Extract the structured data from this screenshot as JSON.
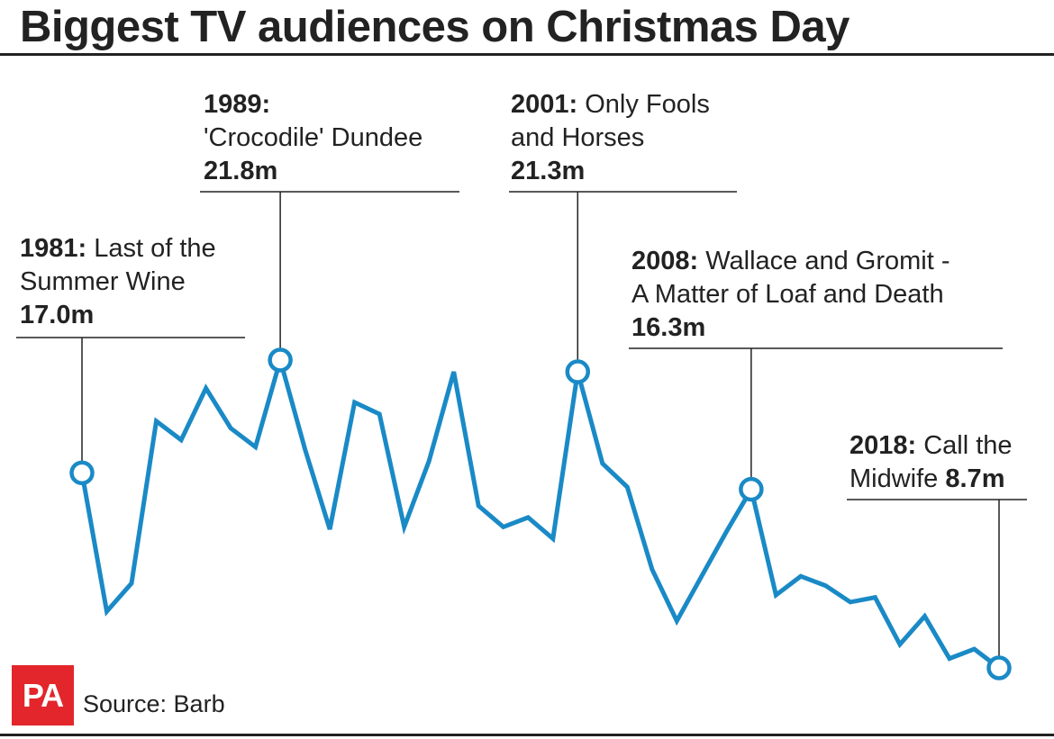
{
  "title": "Biggest TV audiences on Christmas Day",
  "source": "Source: Barb",
  "logo_text": "PA",
  "colors": {
    "line": "#1a8ac6",
    "text": "#222222",
    "logo": "#e3262b",
    "background": "#ffffff"
  },
  "annotations": [
    {
      "year": "1981:",
      "text": "Last of the",
      "text2": "Summer Wine",
      "value": "17.0m"
    },
    {
      "year": "1989:",
      "text": "'Crocodile' Dundee",
      "value": "21.8m"
    },
    {
      "year": "2001:",
      "text": "Only Fools",
      "text2": "and Horses",
      "value": "21.3m"
    },
    {
      "year": "2008:",
      "text": "Wallace and Gromit -",
      "text2": "A Matter of Loaf and Death",
      "value": "16.3m"
    },
    {
      "year": "2018:",
      "text": "Call the",
      "text2": "Midwife",
      "value": "8.7m"
    }
  ],
  "chart_data": {
    "type": "line",
    "title": "Biggest TV audiences on Christmas Day",
    "xlabel": "",
    "ylabel": "",
    "grid": false,
    "series": [
      {
        "values": [
          {
            "x": 1981,
            "y": 17.0
          },
          {
            "x": 1982,
            "y": 11.1
          },
          {
            "x": 1983,
            "y": 12.3
          },
          {
            "x": 1984,
            "y": 19.2
          },
          {
            "x": 1985,
            "y": 18.4
          },
          {
            "x": 1986,
            "y": 20.6
          },
          {
            "x": 1987,
            "y": 18.9
          },
          {
            "x": 1988,
            "y": 18.1
          },
          {
            "x": 1989,
            "y": 21.8
          },
          {
            "x": 1990,
            "y": 18.0
          },
          {
            "x": 1991,
            "y": 14.6
          },
          {
            "x": 1992,
            "y": 20.0
          },
          {
            "x": 1993,
            "y": 19.5
          },
          {
            "x": 1994,
            "y": 14.7
          },
          {
            "x": 1995,
            "y": 17.5
          },
          {
            "x": 1996,
            "y": 21.3
          },
          {
            "x": 1997,
            "y": 15.6
          },
          {
            "x": 1998,
            "y": 14.7
          },
          {
            "x": 1999,
            "y": 15.1
          },
          {
            "x": 2000,
            "y": 14.2
          },
          {
            "x": 2001,
            "y": 21.3
          },
          {
            "x": 2002,
            "y": 17.4
          },
          {
            "x": 2003,
            "y": 16.4
          },
          {
            "x": 2004,
            "y": 12.9
          },
          {
            "x": 2005,
            "y": 10.7
          },
          {
            "x": 2006,
            "y": 12.6
          },
          {
            "x": 2007,
            "y": 14.5
          },
          {
            "x": 2008,
            "y": 16.3
          },
          {
            "x": 2009,
            "y": 11.8
          },
          {
            "x": 2010,
            "y": 12.6
          },
          {
            "x": 2011,
            "y": 12.2
          },
          {
            "x": 2012,
            "y": 11.5
          },
          {
            "x": 2013,
            "y": 11.7
          },
          {
            "x": 2014,
            "y": 9.7
          },
          {
            "x": 2015,
            "y": 10.9
          },
          {
            "x": 2016,
            "y": 9.1
          },
          {
            "x": 2017,
            "y": 9.5
          },
          {
            "x": 2018,
            "y": 8.7
          }
        ]
      }
    ],
    "highlighted_points": [
      {
        "x": 1981,
        "y": 17.0
      },
      {
        "x": 1989,
        "y": 21.8
      },
      {
        "x": 2001,
        "y": 21.3
      },
      {
        "x": 2008,
        "y": 16.3
      },
      {
        "x": 2018,
        "y": 8.7
      }
    ],
    "xlim": [
      1981,
      2018
    ],
    "ylim": [
      8.7,
      21.8
    ]
  }
}
